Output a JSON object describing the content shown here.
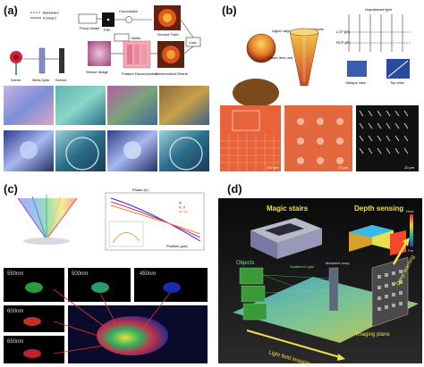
{
  "panels": {
    "a": {
      "label": "(a)",
      "legend": [
        "Backward",
        "Forward"
      ],
      "boxes": [
        "Proxy Model",
        "PSF",
        "Convolution",
        "Noise",
        "Loss",
        "Ground Truth",
        "Scene",
        "Meta-Optic",
        "Sensor",
        "Sensor Image",
        "Feature Deconvolution",
        "Deconvolved Result"
      ]
    },
    "b": {
      "label": "(b)",
      "annotations": [
        "Upper calyx unit",
        "Corneal facets",
        "Lower lens unit",
        "Unpolarized light",
        "LCP (0°)",
        "RCP (0°)",
        "Oblique view",
        "Top view",
        "100 μm",
        "10 μm",
        "10 μm"
      ]
    },
    "c": {
      "label": "(c)",
      "inset_title": "Phase (π)",
      "inset_xlabel": "Position (μm)",
      "legend": [
        "φ",
        "φ_d",
        "φ₁+φ₂"
      ],
      "wavelengths": [
        "550nm",
        "500nm",
        "450nm",
        "600nm",
        "650nm"
      ]
    },
    "d": {
      "label": "(d)",
      "titles": [
        "Magic stairs",
        "Depth sensing"
      ],
      "colorbar": [
        "Near",
        "Far"
      ],
      "annotations": [
        "Objects",
        "Scattered Light",
        "Metalens array",
        "Imaging plane",
        "Deep learning",
        "Light field imaging"
      ]
    }
  }
}
